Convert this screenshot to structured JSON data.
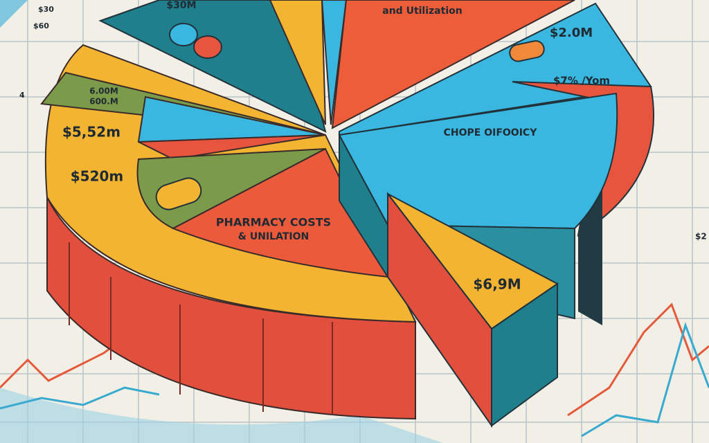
{
  "axis_labels": {
    "top_1": "$30",
    "top_2": "$60",
    "left": "4",
    "right": "$2"
  },
  "labels": {
    "top_title": "and Utilization",
    "top_value": "$30M",
    "right_value_1": "$2.0M",
    "right_value_2": "$7% /Yom",
    "right_title": "CHOPE OIFOOICY",
    "left_value_1": "6.00M",
    "left_value_2": "600.M",
    "left_value_3": "$5,52m",
    "left_value_4": "$520m",
    "center_title_1": "PHARMACY COSTS",
    "center_title_2": "& UNILATION",
    "slice_value": "$6,9M"
  }
}
